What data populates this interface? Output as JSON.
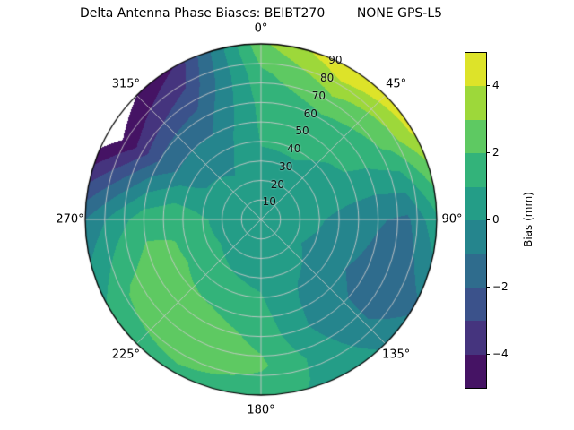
{
  "chart_data": {
    "type": "heatmap",
    "projection": "polar",
    "title": "Delta Antenna Phase Biases: BEIBT270        NONE GPS-L5",
    "azimuth_tick_deg": [
      0,
      45,
      90,
      135,
      180,
      225,
      270,
      315
    ],
    "azimuth_tick_labels": [
      "0°",
      "45°",
      "90°",
      "135°",
      "180°",
      "225°",
      "270°",
      "315°"
    ],
    "zenith_ring_deg": [
      10,
      20,
      30,
      40,
      50,
      60,
      70,
      80,
      90
    ],
    "zenith_ring_labels": [
      "10",
      "20",
      "30",
      "40",
      "50",
      "60",
      "70",
      "80",
      "90"
    ],
    "colorbar": {
      "label": "Bias (mm)",
      "min": -5,
      "max": 5,
      "tick_values": [
        -4,
        -2,
        0,
        2,
        4
      ],
      "tick_labels": [
        "−4",
        "−2",
        "0",
        "2",
        "4"
      ]
    },
    "levels": {
      "min": -5,
      "max": 5,
      "step": 1
    },
    "colormap": {
      "name": "viridis",
      "stops": [
        "#440154",
        "#472d7b",
        "#3b528b",
        "#2c728e",
        "#21918c",
        "#28ae80",
        "#5ec962",
        "#addc30",
        "#fde725"
      ]
    },
    "grid": {
      "azimuth_deg": [
        0,
        30,
        60,
        90,
        120,
        150,
        180,
        210,
        240,
        270,
        300,
        330
      ],
      "zenith_deg": [
        0,
        15,
        30,
        45,
        60,
        75,
        90
      ],
      "bias_mm": [
        [
          0.6,
          0.7,
          0.9,
          1.1,
          1.3,
          1.8,
          2.8
        ],
        [
          0.6,
          0.7,
          0.9,
          1.2,
          1.8,
          3.2,
          5.0
        ],
        [
          0.6,
          0.6,
          0.7,
          0.9,
          1.3,
          2.2,
          4.2
        ],
        [
          0.6,
          0.4,
          0.1,
          -0.4,
          -0.9,
          -1.2,
          0.8
        ],
        [
          0.6,
          0.3,
          -0.2,
          -0.8,
          -1.4,
          -1.9,
          -1.2
        ],
        [
          0.6,
          0.4,
          0.2,
          -0.2,
          -0.4,
          0.2,
          0.8
        ],
        [
          0.6,
          0.6,
          0.8,
          1.2,
          1.7,
          2.2,
          1.2
        ],
        [
          0.6,
          0.7,
          1.0,
          1.6,
          2.6,
          2.9,
          1.6
        ],
        [
          0.6,
          0.7,
          1.2,
          2.1,
          2.7,
          2.2,
          1.1
        ],
        [
          0.6,
          0.6,
          1.1,
          1.9,
          1.6,
          0.4,
          -1.0
        ],
        [
          0.6,
          0.4,
          0.1,
          -0.6,
          -2.0,
          -4.2,
          -6.0
        ],
        [
          0.6,
          0.3,
          -0.1,
          -0.7,
          -1.6,
          -2.8,
          -4.0
        ]
      ]
    }
  }
}
